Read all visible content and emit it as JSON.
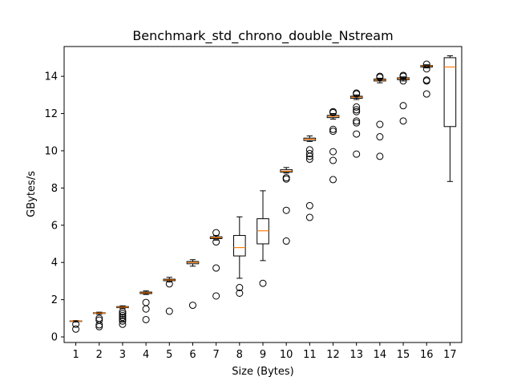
{
  "chart_data": {
    "type": "boxplot",
    "title": "Benchmark_std_chrono_double_Nstream",
    "xlabel": "Size (Bytes)",
    "ylabel": "GBytes/s",
    "ylim": [
      -0.3,
      15.6
    ],
    "y_ticks": [
      0,
      2,
      4,
      6,
      8,
      10,
      12,
      14
    ],
    "grid": false,
    "colors": {
      "box": "#000000",
      "median": "#ff7f0e",
      "flier": "#000000"
    },
    "categories": [
      "1",
      "2",
      "3",
      "4",
      "5",
      "6",
      "7",
      "8",
      "9",
      "10",
      "11",
      "12",
      "13",
      "14",
      "15",
      "16",
      "17"
    ],
    "boxes": [
      {
        "label": "1",
        "whislo": 0.8,
        "q1": 0.83,
        "med": 0.85,
        "q3": 0.86,
        "whishi": 0.88,
        "fliers": [
          0.68,
          0.42
        ]
      },
      {
        "label": "2",
        "whislo": 1.22,
        "q1": 1.26,
        "med": 1.28,
        "q3": 1.3,
        "whishi": 1.33,
        "fliers": [
          1.0,
          0.9,
          0.65,
          0.55
        ]
      },
      {
        "label": "3",
        "whislo": 1.52,
        "q1": 1.57,
        "med": 1.6,
        "q3": 1.63,
        "whishi": 1.67,
        "fliers": [
          1.35,
          1.25,
          1.15,
          1.05,
          0.95,
          0.85,
          0.68
        ]
      },
      {
        "label": "4",
        "whislo": 2.28,
        "q1": 2.33,
        "med": 2.37,
        "q3": 2.41,
        "whishi": 2.47,
        "fliers": [
          1.85,
          1.5,
          0.93
        ]
      },
      {
        "label": "5",
        "whislo": 2.95,
        "q1": 3.02,
        "med": 3.06,
        "q3": 3.1,
        "whishi": 3.2,
        "fliers": [
          2.85,
          1.38
        ]
      },
      {
        "label": "6",
        "whislo": 3.8,
        "q1": 3.93,
        "med": 4.0,
        "q3": 4.05,
        "whishi": 4.15,
        "fliers": [
          1.7
        ]
      },
      {
        "label": "7",
        "whislo": 5.2,
        "q1": 5.28,
        "med": 5.33,
        "q3": 5.38,
        "whishi": 5.45,
        "fliers": [
          5.6,
          5.1,
          3.7,
          2.2
        ]
      },
      {
        "label": "8",
        "whislo": 3.15,
        "q1": 4.35,
        "med": 4.8,
        "q3": 5.45,
        "whishi": 6.45,
        "fliers": [
          2.65,
          2.35
        ]
      },
      {
        "label": "9",
        "whislo": 4.1,
        "q1": 5.0,
        "med": 5.7,
        "q3": 6.35,
        "whishi": 7.85,
        "fliers": [
          2.88
        ]
      },
      {
        "label": "10",
        "whislo": 8.8,
        "q1": 8.85,
        "med": 8.9,
        "q3": 8.98,
        "whishi": 9.1,
        "fliers": [
          8.55,
          8.48,
          6.8,
          5.15
        ]
      },
      {
        "label": "11",
        "whislo": 10.5,
        "q1": 10.55,
        "med": 10.62,
        "q3": 10.68,
        "whishi": 10.8,
        "fliers": [
          10.05,
          9.85,
          9.7,
          9.55,
          7.05,
          6.42
        ]
      },
      {
        "label": "12",
        "whislo": 11.7,
        "q1": 11.78,
        "med": 11.85,
        "q3": 11.9,
        "whishi": 12.0,
        "fliers": [
          12.1,
          12.05,
          11.15,
          11.05,
          9.95,
          9.48,
          8.45
        ]
      },
      {
        "label": "13",
        "whislo": 12.75,
        "q1": 12.82,
        "med": 12.88,
        "q3": 12.93,
        "whishi": 13.0,
        "fliers": [
          13.1,
          13.05,
          12.35,
          12.2,
          12.1,
          11.6,
          11.5,
          10.9,
          9.82
        ]
      },
      {
        "label": "14",
        "whislo": 13.65,
        "q1": 13.75,
        "med": 13.8,
        "q3": 13.85,
        "whishi": 13.9,
        "fliers": [
          14.0,
          13.95,
          11.42,
          10.75,
          9.7
        ]
      },
      {
        "label": "15",
        "whislo": 13.75,
        "q1": 13.82,
        "med": 13.88,
        "q3": 13.92,
        "whishi": 13.97,
        "fliers": [
          14.05,
          14.0,
          13.75,
          12.42,
          11.6
        ]
      },
      {
        "label": "16",
        "whislo": 14.45,
        "q1": 14.5,
        "med": 14.55,
        "q3": 14.58,
        "whishi": 14.62,
        "fliers": [
          14.65,
          14.4,
          13.8,
          13.75,
          13.05
        ]
      },
      {
        "label": "17",
        "whislo": 8.35,
        "q1": 11.3,
        "med": 14.5,
        "q3": 15.0,
        "whishi": 15.1,
        "fliers": []
      }
    ]
  }
}
